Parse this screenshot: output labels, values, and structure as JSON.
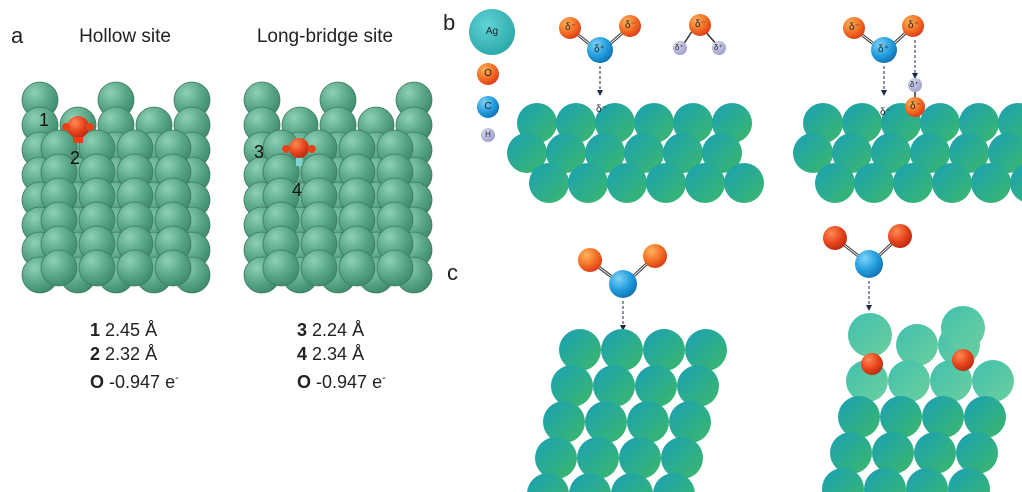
{
  "panel_labels": {
    "a": "a",
    "b": "b",
    "c": "c"
  },
  "panel_a": {
    "titles": {
      "hollow": "Hollow site",
      "bridge": "Long-bridge site"
    },
    "site_numbers": {
      "n1": "1",
      "n2": "2",
      "n3": "3",
      "n4": "4"
    },
    "hollow_measurements": [
      {
        "label": "1",
        "value": "2.45 Å"
      },
      {
        "label": "2",
        "value": "2.32 Å"
      },
      {
        "label": "O",
        "value": "-0.947 e",
        "sup": "-"
      }
    ],
    "bridge_measurements": [
      {
        "label": "3",
        "value": "2.24 Å"
      },
      {
        "label": "4",
        "value": "2.34 Å"
      },
      {
        "label": "O",
        "value": "-0.947 e",
        "sup": "-"
      }
    ]
  },
  "legend": {
    "ag": "Ag",
    "o": "O",
    "c": "C",
    "h": "H"
  },
  "charges": {
    "delta_minus": "δ⁻",
    "delta_plus": "δ⁺"
  },
  "colors": {
    "ag_green": "#3aa884",
    "ag_teal": "#25a8a8",
    "atom_a_green": "#5fb08f",
    "oxygen_red": "#e8401c",
    "oxygen_orange": "#f7931e",
    "carbon_blue": "#1a8fd6",
    "hydrogen_lavender": "#b3b5d9"
  }
}
